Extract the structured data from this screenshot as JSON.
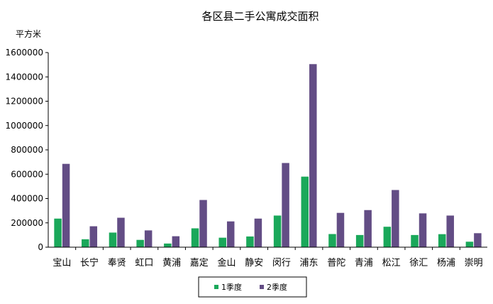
{
  "chart_data": {
    "type": "bar",
    "title": "各区县二手公寓成交面积",
    "ylabel": "平方米",
    "xlabel": "",
    "ylim": [
      0,
      1600000
    ],
    "yticks": [
      "0",
      "200000",
      "400000",
      "600000",
      "800000",
      "1000000",
      "1200000",
      "1400000",
      "1600000"
    ],
    "categories": [
      "宝山",
      "长宁",
      "奉贤",
      "虹口",
      "黄浦",
      "嘉定",
      "金山",
      "静安",
      "闵行",
      "浦东",
      "普陀",
      "青浦",
      "松江",
      "徐汇",
      "杨浦",
      "崇明"
    ],
    "series": [
      {
        "name": "1季度",
        "color": "#1aa85a",
        "values": [
          235000,
          65000,
          120000,
          60000,
          30000,
          155000,
          78000,
          88000,
          260000,
          580000,
          108000,
          100000,
          168000,
          100000,
          107000,
          45000
        ]
      },
      {
        "name": "2季度",
        "color": "#634d85",
        "values": [
          685000,
          172000,
          242000,
          138000,
          90000,
          388000,
          212000,
          235000,
          692000,
          1505000,
          282000,
          305000,
          470000,
          278000,
          260000,
          115000
        ]
      }
    ],
    "grid": false,
    "legend": "bottom-center"
  }
}
